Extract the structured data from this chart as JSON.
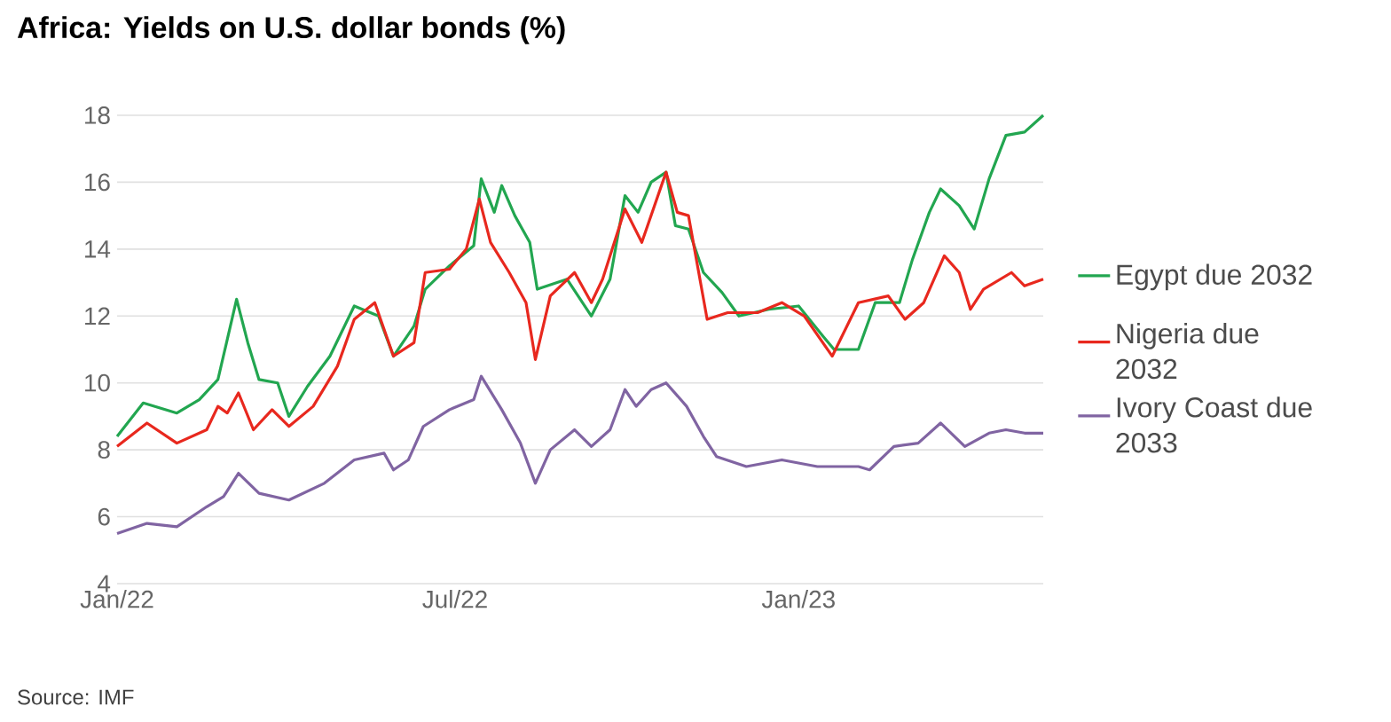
{
  "chart_data": {
    "type": "line",
    "title": "Africa: Yields on U.S. dollar bonds (%)",
    "annotations": [
      "Source: IMF"
    ],
    "xlim": [
      "2022-01-01",
      "2023-05-12"
    ],
    "ylim": [
      4,
      18
    ],
    "yticks": [
      4,
      6,
      8,
      10,
      12,
      14,
      16,
      18
    ],
    "xticks": [
      {
        "value": "2022-01-01",
        "label": "Jan/22"
      },
      {
        "value": "2022-07-01",
        "label": "Jul/22"
      },
      {
        "value": "2023-01-01",
        "label": "Jan/23"
      }
    ],
    "grid": "y",
    "legend": "right",
    "marker": "none",
    "series": [
      {
        "name": "Egypt due 2032",
        "color": "#22a650",
        "x": [
          "2022-01-01",
          "2022-01-15",
          "2022-02-02",
          "2022-02-14",
          "2022-02-24",
          "2022-03-06",
          "2022-03-12",
          "2022-03-18",
          "2022-03-28",
          "2022-04-03",
          "2022-04-13",
          "2022-04-25",
          "2022-05-08",
          "2022-05-21",
          "2022-05-29",
          "2022-06-09",
          "2022-06-15",
          "2022-06-28",
          "2022-07-11",
          "2022-07-15",
          "2022-07-22",
          "2022-07-26",
          "2022-08-02",
          "2022-08-10",
          "2022-08-14",
          "2022-08-30",
          "2022-09-12",
          "2022-09-22",
          "2022-09-30",
          "2022-10-07",
          "2022-10-14",
          "2022-10-22",
          "2022-10-27",
          "2022-11-03",
          "2022-11-11",
          "2022-11-21",
          "2022-11-30",
          "2022-12-16",
          "2023-01-01",
          "2023-01-14",
          "2023-01-20",
          "2023-02-02",
          "2023-02-11",
          "2023-02-24",
          "2023-03-03",
          "2023-03-12",
          "2023-03-18",
          "2023-03-28",
          "2023-04-05",
          "2023-04-13",
          "2023-04-22",
          "2023-05-02",
          "2023-05-12"
        ],
        "values": [
          8.4,
          9.4,
          9.1,
          9.5,
          10.1,
          12.5,
          11.2,
          10.1,
          10.0,
          9.0,
          9.9,
          10.8,
          12.3,
          12.0,
          10.8,
          11.7,
          12.8,
          13.5,
          14.1,
          16.1,
          15.1,
          15.9,
          15.0,
          14.2,
          12.8,
          13.1,
          12.0,
          13.1,
          15.6,
          15.1,
          16.0,
          16.3,
          14.7,
          14.6,
          13.3,
          12.7,
          12.0,
          12.2,
          12.3,
          11.4,
          11.0,
          11.0,
          12.4,
          12.4,
          13.7,
          15.1,
          15.8,
          15.3,
          14.6,
          16.1,
          17.4,
          17.5,
          18.0
        ]
      },
      {
        "name": "Nigeria due 2032",
        "color": "#e8281e",
        "x": [
          "2022-01-01",
          "2022-01-17",
          "2022-02-02",
          "2022-02-18",
          "2022-02-24",
          "2022-03-01",
          "2022-03-07",
          "2022-03-15",
          "2022-03-25",
          "2022-04-03",
          "2022-04-16",
          "2022-04-29",
          "2022-05-08",
          "2022-05-19",
          "2022-05-29",
          "2022-06-09",
          "2022-06-15",
          "2022-06-28",
          "2022-07-07",
          "2022-07-14",
          "2022-07-20",
          "2022-07-30",
          "2022-08-08",
          "2022-08-13",
          "2022-08-21",
          "2022-09-03",
          "2022-09-12",
          "2022-09-18",
          "2022-09-30",
          "2022-10-09",
          "2022-10-22",
          "2022-10-28",
          "2022-11-03",
          "2022-11-13",
          "2022-11-24",
          "2022-12-10",
          "2022-12-23",
          "2023-01-04",
          "2023-01-19",
          "2023-02-02",
          "2023-02-18",
          "2023-02-27",
          "2023-03-09",
          "2023-03-20",
          "2023-03-28",
          "2023-04-03",
          "2023-04-10",
          "2023-04-25",
          "2023-05-02",
          "2023-05-12"
        ],
        "values": [
          8.1,
          8.8,
          8.2,
          8.6,
          9.3,
          9.1,
          9.7,
          8.6,
          9.2,
          8.7,
          9.3,
          10.5,
          11.9,
          12.4,
          10.8,
          11.2,
          13.3,
          13.4,
          14.0,
          15.5,
          14.2,
          13.3,
          12.4,
          10.7,
          12.6,
          13.3,
          12.4,
          13.1,
          15.2,
          14.2,
          16.3,
          15.1,
          15.0,
          11.9,
          12.1,
          12.1,
          12.4,
          12.0,
          10.8,
          12.4,
          12.6,
          11.9,
          12.4,
          13.8,
          13.3,
          12.2,
          12.8,
          13.3,
          12.9,
          13.1
        ]
      },
      {
        "name": "Ivory Coast due 2033",
        "color": "#8064a2",
        "x": [
          "2022-01-01",
          "2022-01-17",
          "2022-02-02",
          "2022-02-18",
          "2022-02-27",
          "2022-03-07",
          "2022-03-18",
          "2022-04-03",
          "2022-04-22",
          "2022-05-08",
          "2022-05-24",
          "2022-05-29",
          "2022-06-06",
          "2022-06-14",
          "2022-06-28",
          "2022-07-11",
          "2022-07-15",
          "2022-07-26",
          "2022-08-05",
          "2022-08-13",
          "2022-08-21",
          "2022-09-03",
          "2022-09-12",
          "2022-09-22",
          "2022-09-30",
          "2022-10-06",
          "2022-10-14",
          "2022-10-22",
          "2022-11-02",
          "2022-11-11",
          "2022-11-18",
          "2022-12-04",
          "2022-12-23",
          "2023-01-11",
          "2023-02-02",
          "2023-02-08",
          "2023-02-21",
          "2023-03-06",
          "2023-03-18",
          "2023-03-31",
          "2023-04-13",
          "2023-04-22",
          "2023-05-02",
          "2023-05-12"
        ],
        "values": [
          5.5,
          5.8,
          5.7,
          6.3,
          6.6,
          7.3,
          6.7,
          6.5,
          7.0,
          7.7,
          7.9,
          7.4,
          7.7,
          8.7,
          9.2,
          9.5,
          10.2,
          9.2,
          8.2,
          7.0,
          8.0,
          8.6,
          8.1,
          8.6,
          9.8,
          9.3,
          9.8,
          10.0,
          9.3,
          8.4,
          7.8,
          7.5,
          7.7,
          7.5,
          7.5,
          7.4,
          8.1,
          8.2,
          8.8,
          8.1,
          8.5,
          8.6,
          8.5,
          8.5
        ]
      }
    ]
  }
}
